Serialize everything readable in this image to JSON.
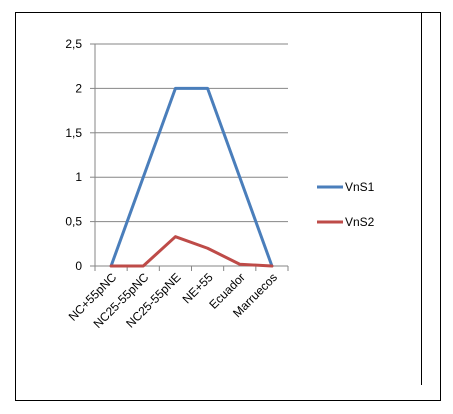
{
  "chart_data": {
    "type": "line",
    "categories": [
      "NC+55pNC",
      "NC25-55pNC",
      "NC25-55pNE",
      "NE+55",
      "Ecuador",
      "Marruecos"
    ],
    "series": [
      {
        "name": "VnS1",
        "color": "#4a7ebb",
        "values": [
          0,
          1,
          2,
          2,
          1,
          0
        ]
      },
      {
        "name": "VnS2",
        "color": "#be4b48",
        "values": [
          0,
          0,
          0.33,
          0.2,
          0.02,
          0
        ]
      }
    ],
    "yticks": [
      "0",
      "0,5",
      "1",
      "1,5",
      "2",
      "2,5"
    ],
    "ylim": [
      0,
      2.5
    ],
    "grid": true,
    "legend_position": "right",
    "title": "",
    "xlabel": "",
    "ylabel": ""
  }
}
